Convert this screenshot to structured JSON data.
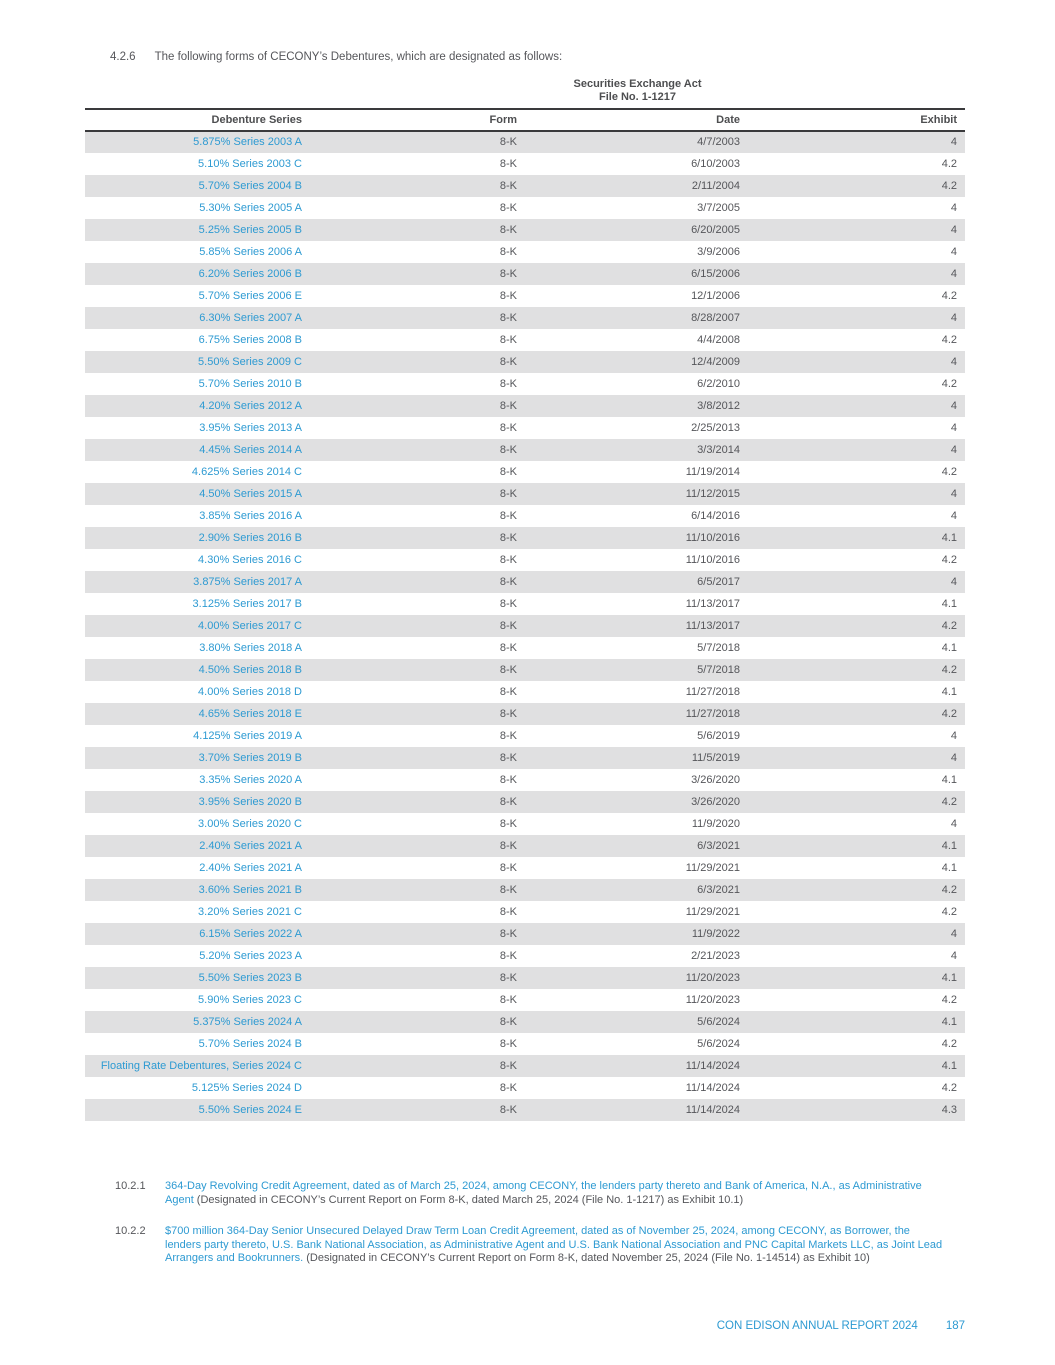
{
  "section": {
    "number": "4.2.6",
    "text": "The following forms of CECONY’s Debentures, which are designated as follows:"
  },
  "table": {
    "group_header": {
      "line1": "Securities Exchange Act",
      "line2": "File No. 1-1217"
    },
    "columns": [
      "Debenture Series",
      "Form",
      "Date",
      "Exhibit"
    ],
    "rows": [
      {
        "series": "5.875% Series 2003 A",
        "form": "8-K",
        "date": "4/7/2003",
        "exhibit": "4"
      },
      {
        "series": "5.10% Series 2003 C",
        "form": "8-K",
        "date": "6/10/2003",
        "exhibit": "4.2"
      },
      {
        "series": "5.70% Series 2004 B",
        "form": "8-K",
        "date": "2/11/2004",
        "exhibit": "4.2"
      },
      {
        "series": "5.30% Series 2005 A",
        "form": "8-K",
        "date": "3/7/2005",
        "exhibit": "4"
      },
      {
        "series": "5.25% Series 2005 B",
        "form": "8-K",
        "date": "6/20/2005",
        "exhibit": "4"
      },
      {
        "series": "5.85% Series 2006 A",
        "form": "8-K",
        "date": "3/9/2006",
        "exhibit": "4"
      },
      {
        "series": "6.20% Series 2006 B",
        "form": "8-K",
        "date": "6/15/2006",
        "exhibit": "4"
      },
      {
        "series": "5.70% Series 2006 E",
        "form": "8-K",
        "date": "12/1/2006",
        "exhibit": "4.2"
      },
      {
        "series": "6.30% Series 2007 A",
        "form": "8-K",
        "date": "8/28/2007",
        "exhibit": "4"
      },
      {
        "series": "6.75% Series 2008 B",
        "form": "8-K",
        "date": "4/4/2008",
        "exhibit": "4.2"
      },
      {
        "series": "5.50% Series 2009 C",
        "form": "8-K",
        "date": "12/4/2009",
        "exhibit": "4"
      },
      {
        "series": "5.70% Series 2010 B",
        "form": "8-K",
        "date": "6/2/2010",
        "exhibit": "4.2"
      },
      {
        "series": "4.20% Series 2012 A",
        "form": "8-K",
        "date": "3/8/2012",
        "exhibit": "4"
      },
      {
        "series": "3.95% Series 2013 A",
        "form": "8-K",
        "date": "2/25/2013",
        "exhibit": "4"
      },
      {
        "series": "4.45% Series 2014 A",
        "form": "8-K",
        "date": "3/3/2014",
        "exhibit": "4"
      },
      {
        "series": "4.625% Series 2014 C",
        "form": "8-K",
        "date": "11/19/2014",
        "exhibit": "4.2"
      },
      {
        "series": "4.50% Series 2015 A",
        "form": "8-K",
        "date": "11/12/2015",
        "exhibit": "4"
      },
      {
        "series": "3.85% Series 2016 A",
        "form": "8-K",
        "date": "6/14/2016",
        "exhibit": "4"
      },
      {
        "series": "2.90% Series 2016 B",
        "form": "8-K",
        "date": "11/10/2016",
        "exhibit": "4.1"
      },
      {
        "series": "4.30% Series 2016 C",
        "form": "8-K",
        "date": "11/10/2016",
        "exhibit": "4.2"
      },
      {
        "series": "3.875% Series 2017 A",
        "form": "8-K",
        "date": "6/5/2017",
        "exhibit": "4"
      },
      {
        "series": "3.125% Series 2017 B",
        "form": "8-K",
        "date": "11/13/2017",
        "exhibit": "4.1"
      },
      {
        "series": "4.00% Series 2017 C",
        "form": "8-K",
        "date": "11/13/2017",
        "exhibit": "4.2"
      },
      {
        "series": "3.80% Series 2018 A",
        "form": "8-K",
        "date": "5/7/2018",
        "exhibit": "4.1"
      },
      {
        "series": "4.50% Series 2018 B",
        "form": "8-K",
        "date": "5/7/2018",
        "exhibit": "4.2"
      },
      {
        "series": "4.00% Series 2018 D",
        "form": "8-K",
        "date": "11/27/2018",
        "exhibit": "4.1"
      },
      {
        "series": "4.65% Series 2018 E",
        "form": "8-K",
        "date": "11/27/2018",
        "exhibit": "4.2"
      },
      {
        "series": "4.125% Series 2019 A",
        "form": "8-K",
        "date": "5/6/2019",
        "exhibit": "4"
      },
      {
        "series": "3.70% Series 2019 B",
        "form": "8-K",
        "date": "11/5/2019",
        "exhibit": "4"
      },
      {
        "series": "3.35% Series 2020 A",
        "form": "8-K",
        "date": "3/26/2020",
        "exhibit": "4.1"
      },
      {
        "series": "3.95% Series 2020 B",
        "form": "8-K",
        "date": "3/26/2020",
        "exhibit": "4.2"
      },
      {
        "series": "3.00% Series 2020 C",
        "form": "8-K",
        "date": "11/9/2020",
        "exhibit": "4"
      },
      {
        "series": "2.40% Series 2021 A",
        "form": "8-K",
        "date": "6/3/2021",
        "exhibit": "4.1"
      },
      {
        "series": "2.40% Series 2021 A",
        "form": "8-K",
        "date": "11/29/2021",
        "exhibit": "4.1"
      },
      {
        "series": "3.60% Series 2021 B",
        "form": "8-K",
        "date": "6/3/2021",
        "exhibit": "4.2"
      },
      {
        "series": "3.20% Series 2021 C",
        "form": "8-K",
        "date": "11/29/2021",
        "exhibit": "4.2"
      },
      {
        "series": "6.15% Series 2022 A",
        "form": "8-K",
        "date": "11/9/2022",
        "exhibit": "4"
      },
      {
        "series": "5.20% Series 2023 A",
        "form": "8-K",
        "date": "2/21/2023",
        "exhibit": "4"
      },
      {
        "series": "5.50% Series 2023 B",
        "form": "8-K",
        "date": "11/20/2023",
        "exhibit": "4.1"
      },
      {
        "series": "5.90% Series 2023 C",
        "form": "8-K",
        "date": "11/20/2023",
        "exhibit": "4.2"
      },
      {
        "series": "5.375% Series 2024 A",
        "form": "8-K",
        "date": "5/6/2024",
        "exhibit": "4.1"
      },
      {
        "series": "5.70% Series 2024 B",
        "form": "8-K",
        "date": "5/6/2024",
        "exhibit": "4.2"
      },
      {
        "series": "Floating Rate Debentures, Series 2024 C",
        "form": "8-K",
        "date": "11/14/2024",
        "exhibit": "4.1"
      },
      {
        "series": "5.125% Series 2024 D",
        "form": "8-K",
        "date": "11/14/2024",
        "exhibit": "4.2"
      },
      {
        "series": "5.50% Series 2024 E",
        "form": "8-K",
        "date": "11/14/2024",
        "exhibit": "4.3"
      }
    ]
  },
  "footnotes": [
    {
      "number": "10.2.1",
      "link_text": "364-Day Revolving Credit Agreement, dated as of March 25, 2024, among CECONY, the lenders party thereto and Bank of America, N.A., as Administrative Agent",
      "plain_text": " (Designated in CECONY’s Current Report on Form 8-K, dated March 25, 2024 (File No. 1-1217) as Exhibit 10.1)"
    },
    {
      "number": "10.2.2",
      "link_text": "$700 million 364-Day Senior Unsecured Delayed Draw Term Loan Credit Agreement, dated as of November 25, 2024, among CECONY, as Borrower, the lenders party thereto, U.S. Bank National Association, as Administrative Agent and U.S. Bank National Association and PNC Capital Markets LLC, as Joint Lead Arrangers and Bookrunners.",
      "plain_text": " (Designated in CECONY’s Current Report on Form 8-K, dated November 25, 2024 (File No. 1-14514) as Exhibit 10)"
    }
  ],
  "footer": {
    "report_title": "CON EDISON ANNUAL REPORT 2024",
    "page_number": "187"
  },
  "colors": {
    "link_blue": "#2D9AD2",
    "text_gray": "#55565A",
    "row_shade": "#E0E0E1",
    "rule_dark": "#3A3A3C"
  }
}
